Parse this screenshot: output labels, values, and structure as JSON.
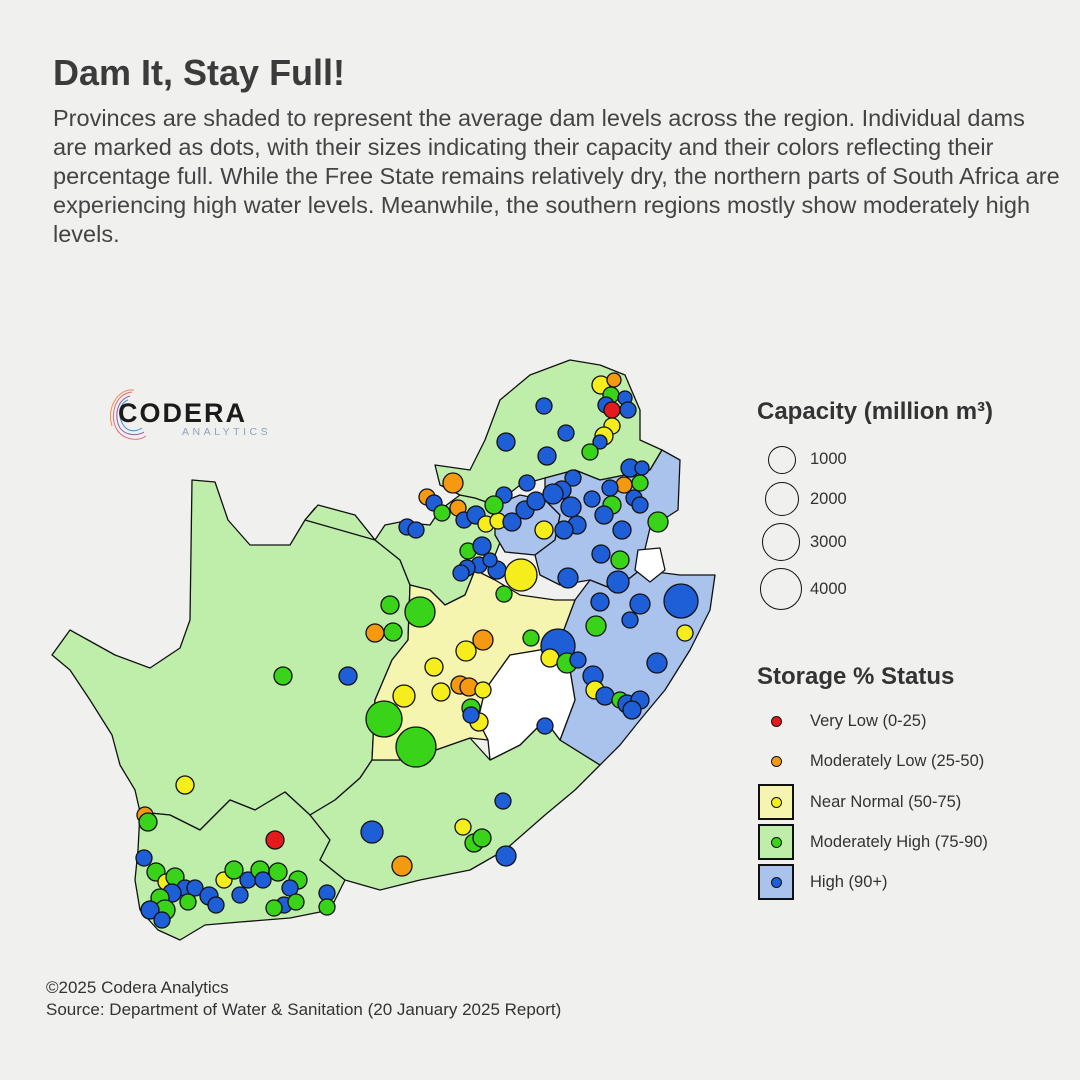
{
  "header": {
    "title": "Dam It, Stay Full!",
    "subtitle": "Provinces are shaded to represent the average dam levels across the region. Individual dams are marked as dots, with their sizes indicating their capacity and their colors reflecting their percentage full. While the Free State remains relatively dry, the northern parts of South Africa are experiencing high water levels. Meanwhile, the southern regions mostly show moderately high levels."
  },
  "logo": {
    "name": "CODERA",
    "sub": "ANALYTICS"
  },
  "legend": {
    "capacity": {
      "title": "Capacity (million m³)",
      "items": [
        {
          "label": "1000",
          "value": 1000
        },
        {
          "label": "2000",
          "value": 2000
        },
        {
          "label": "3000",
          "value": 3000
        },
        {
          "label": "4000",
          "value": 4000
        }
      ]
    },
    "storage": {
      "title": "Storage % Status",
      "items": [
        {
          "label": "Very Low (0-25)",
          "color": "#e41a1c",
          "fill": ""
        },
        {
          "label": "Moderately Low (25-50)",
          "color": "#f59a10",
          "fill": ""
        },
        {
          "label": "Near Normal (50-75)",
          "color": "#f5ee1c",
          "fill": "#f5f5b0"
        },
        {
          "label": "Moderately High (75-90)",
          "color": "#39d41a",
          "fill": "#bfeeaa"
        },
        {
          "label": "High (90+)",
          "color": "#1e5ed6",
          "fill": "#a9c3ec"
        }
      ]
    }
  },
  "colors": {
    "province_green": "#bfeeaa",
    "province_yellow": "#f5f5b0",
    "province_blue": "#a9c3ec",
    "lesotho": "#ffffff",
    "background": "#f0f0ef"
  },
  "footer": {
    "copyright": "©2025 Codera Analytics",
    "source": "Source: Department of Water & Sanitation (20 January 2025 Report)"
  }
}
